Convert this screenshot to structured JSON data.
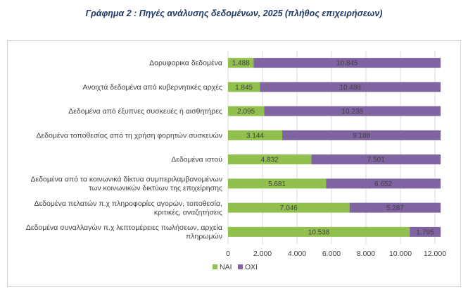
{
  "title": "Γράφημα 2 : Πηγές ανάλυσης δεδομένων, 2025 (πλήθος  επιχειρήσεων)",
  "colors": {
    "nai": "#92c04f",
    "oxi": "#8064a2",
    "grid": "#d9d9d9"
  },
  "chart_data": {
    "type": "bar",
    "orientation": "horizontal",
    "stacked": true,
    "title": "Γράφημα 2 : Πηγές ανάλυσης δεδομένων, 2025 (πλήθος  επιχειρήσεων)",
    "categories": [
      [
        "Δορυφορικα δεδομένα"
      ],
      [
        "Ανοιχτά δεδομένα από κυβερνητικές αρχές"
      ],
      [
        "Δεδομένα από έξυπνες συσκευές ή αισθητήρες"
      ],
      [
        "Δεδομένα τοποθεσίας από τη χρήση φορητών συσκευών"
      ],
      [
        "Δεδομένα ιστού"
      ],
      [
        "Δεδομένα από τα κοινωνικά δίκτυα συμπεριλαμβανομένων",
        "των κοινωνικών δικτύων της επιχείρησης"
      ],
      [
        "Δεδομένα πελατών π.χ πληροφορίες αγορών, τοποθεσία,",
        "κριτικές, αναζητήσεις"
      ],
      [
        "Δεδομένα συναλλαγών π.χ λεπτομέρειες πωλήσεων, αρχεία",
        "πληρωμών"
      ]
    ],
    "series": [
      {
        "name": "ΝΑΙ",
        "values": [
          1488,
          1845,
          2095,
          3144,
          4832,
          5681,
          7046,
          10538
        ],
        "labels": [
          "1.488",
          "1.845",
          "2.095",
          "3.144",
          "4.832",
          "5.681",
          "7.046",
          "10.538"
        ]
      },
      {
        "name": "ΟΧΙ",
        "values": [
          10845,
          10488,
          10238,
          9188,
          7501,
          6652,
          5287,
          1795
        ],
        "labels": [
          "10.845",
          "10.488",
          "10.238",
          "9.188",
          "7.501",
          "6.652",
          "5.287",
          "1.795"
        ]
      }
    ],
    "xlim": [
      0,
      12000
    ],
    "xticks": [
      0,
      2000,
      4000,
      6000,
      8000,
      10000,
      12000
    ],
    "xtick_labels": [
      "0",
      "2.000",
      "4.000",
      "6.000",
      "8.000",
      "10.000",
      "12.000"
    ],
    "grid": true,
    "legend_position": "bottom-left"
  }
}
